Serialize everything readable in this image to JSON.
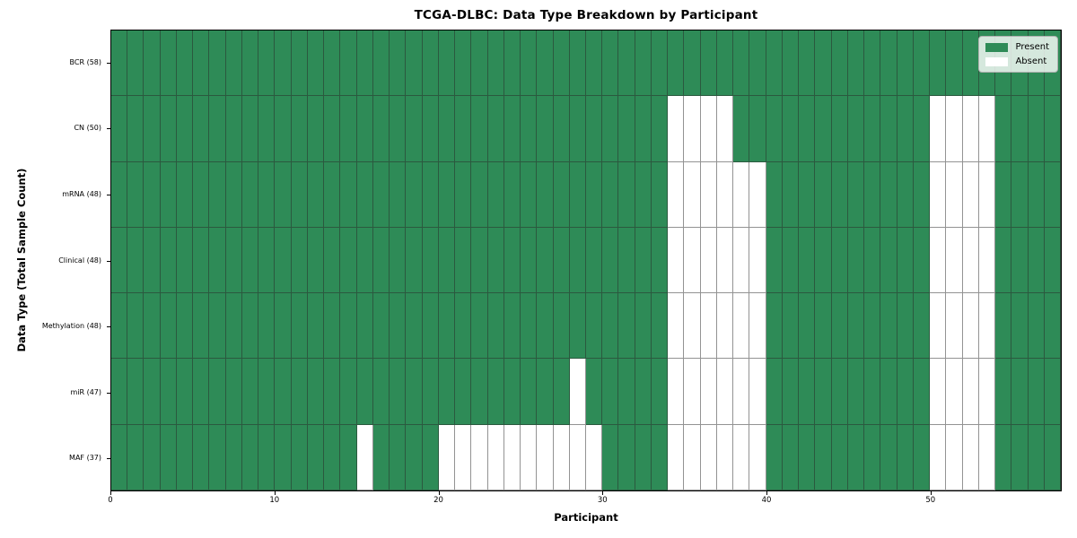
{
  "chart_data": {
    "type": "heatmap",
    "title": "TCGA-DLBC: Data Type Breakdown by Participant",
    "xlabel": "Participant",
    "ylabel": "Data Type (Total Sample Count)",
    "n_participants": 58,
    "x_ticks": [
      0,
      10,
      20,
      30,
      40,
      50
    ],
    "grid": true,
    "colors": {
      "present": "#2e8b57",
      "absent": "#ffffff"
    },
    "legend": {
      "position": "upper right",
      "entries": [
        {
          "label": "Present",
          "key": "present"
        },
        {
          "label": "Absent",
          "key": "absent"
        }
      ]
    },
    "rows": [
      {
        "short": "BCR",
        "label": "BCR (58)",
        "present_count": 58,
        "absent": []
      },
      {
        "short": "CN",
        "label": "CN (50)",
        "present_count": 50,
        "absent": [
          34,
          35,
          36,
          37,
          50,
          51,
          52,
          53
        ]
      },
      {
        "short": "mRNA",
        "label": "mRNA (48)",
        "present_count": 48,
        "absent": [
          34,
          35,
          36,
          37,
          38,
          39,
          50,
          51,
          52,
          53
        ]
      },
      {
        "short": "Clinical",
        "label": "Clinical (48)",
        "present_count": 48,
        "absent": [
          34,
          35,
          36,
          37,
          38,
          39,
          50,
          51,
          52,
          53
        ]
      },
      {
        "short": "Methylation",
        "label": "Methylation (48)",
        "present_count": 48,
        "absent": [
          34,
          35,
          36,
          37,
          38,
          39,
          50,
          51,
          52,
          53
        ]
      },
      {
        "short": "miR",
        "label": "miR (47)",
        "present_count": 47,
        "absent": [
          28,
          34,
          35,
          36,
          37,
          38,
          39,
          50,
          51,
          52,
          53
        ]
      },
      {
        "short": "MAF",
        "label": "MAF (37)",
        "present_count": 37,
        "absent": [
          15,
          20,
          21,
          22,
          23,
          24,
          25,
          26,
          27,
          28,
          29,
          34,
          35,
          36,
          37,
          38,
          39,
          50,
          51,
          52,
          53
        ]
      }
    ]
  }
}
